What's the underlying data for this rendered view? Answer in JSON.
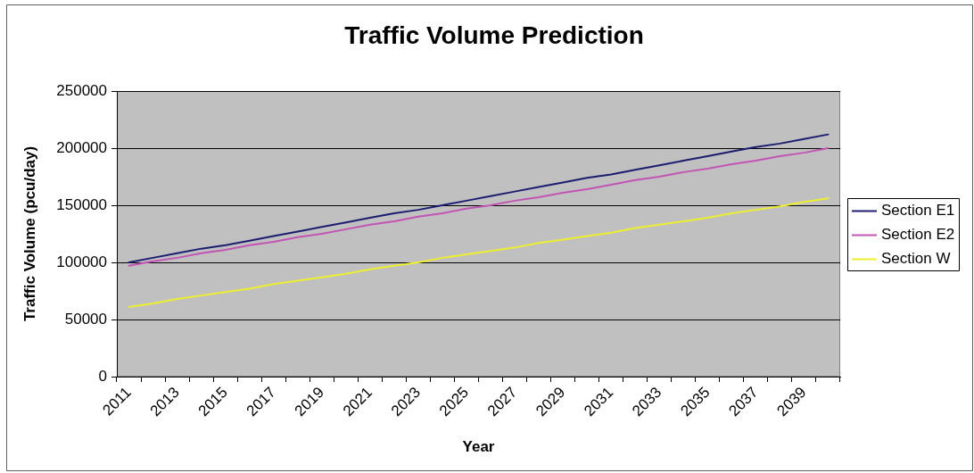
{
  "chart_data": {
    "type": "line",
    "title": "Traffic Volume Prediction",
    "xlabel": "Year",
    "ylabel": "Traffic Volume (pcu/day)",
    "categories": [
      "2011",
      null,
      "2013",
      null,
      "2015",
      null,
      "2017",
      null,
      "2019",
      null,
      "2021",
      null,
      "2023",
      null,
      "2025",
      null,
      "2027",
      null,
      "2029",
      null,
      "2031",
      null,
      "2033",
      null,
      "2035",
      null,
      "2037",
      null,
      "2039",
      null
    ],
    "series": [
      {
        "name": "Section E1",
        "color": "#1c1c70",
        "values": [
          100000,
          104000,
          108000,
          112000,
          115000,
          119000,
          123000,
          127000,
          131000,
          135000,
          139000,
          143000,
          146000,
          150000,
          154000,
          158000,
          162000,
          166000,
          170000,
          174000,
          177000,
          181000,
          185000,
          189000,
          193000,
          197000,
          201000,
          204000,
          208000,
          212000
        ]
      },
      {
        "name": "Section E2",
        "color": "#c254b4",
        "values": [
          97000,
          101000,
          104000,
          108000,
          111000,
          115000,
          118000,
          122000,
          125000,
          129000,
          133000,
          136000,
          140000,
          143000,
          147000,
          150000,
          154000,
          157000,
          161000,
          164000,
          168000,
          172000,
          175000,
          179000,
          182000,
          186000,
          189000,
          193000,
          196000,
          200000
        ]
      },
      {
        "name": "Section W",
        "color": "#eeee30",
        "values": [
          61000,
          64000,
          68000,
          71000,
          74000,
          77000,
          81000,
          84000,
          87000,
          90000,
          94000,
          97000,
          100000,
          104000,
          107000,
          110000,
          113000,
          117000,
          120000,
          123000,
          126000,
          130000,
          133000,
          136000,
          139000,
          143000,
          146000,
          149000,
          153000,
          156000
        ]
      }
    ],
    "ylim": [
      0,
      250000
    ],
    "yticks": [
      0,
      50000,
      100000,
      150000,
      200000,
      250000
    ],
    "grid": "y",
    "legend": "right",
    "marker": "none"
  }
}
